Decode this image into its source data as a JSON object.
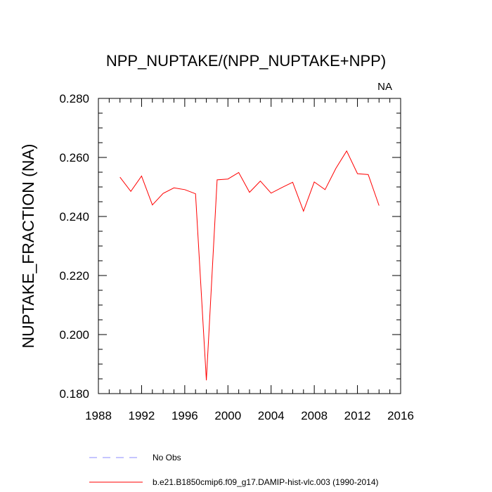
{
  "chart_data": {
    "type": "line",
    "title": "NPP_NUPTAKE/(NPP_NUPTAKE+NPP)",
    "region_label": "NA",
    "xlabel": "",
    "ylabel": "NUPTAKE_FRACTION  (NA)",
    "xlim": [
      1988,
      2016
    ],
    "ylim": [
      0.18,
      0.28
    ],
    "x_ticks": [
      1988,
      1992,
      1996,
      2000,
      2004,
      2008,
      2012,
      2016
    ],
    "x_tick_labels": [
      "1988",
      "1992",
      "1996",
      "2000",
      "2004",
      "2008",
      "2012",
      "2016"
    ],
    "y_ticks": [
      0.18,
      0.2,
      0.22,
      0.24,
      0.26,
      0.28
    ],
    "y_tick_labels": [
      "0.180",
      "0.200",
      "0.220",
      "0.240",
      "0.260",
      "0.280"
    ],
    "grid": false,
    "legend_position": "bottom",
    "series": [
      {
        "name": "b.e21.B1850cmip6.f09_g17.DAMIP-hist-vlc.003 (1990-2014)",
        "color": "#ff0000",
        "x": [
          1990,
          1991,
          1992,
          1993,
          1994,
          1995,
          1996,
          1997,
          1998,
          1999,
          2000,
          2001,
          2002,
          2003,
          2004,
          2005,
          2006,
          2007,
          2008,
          2009,
          2010,
          2011,
          2012,
          2013,
          2014
        ],
        "y": [
          0.2533,
          0.2485,
          0.2537,
          0.2439,
          0.2478,
          0.2497,
          0.2491,
          0.2477,
          0.1845,
          0.2524,
          0.2527,
          0.2549,
          0.2482,
          0.252,
          0.2479,
          0.2498,
          0.2516,
          0.2418,
          0.2517,
          0.2491,
          0.2563,
          0.2622,
          0.2545,
          0.2542,
          0.2437
        ]
      }
    ],
    "legend": [
      {
        "label": "No Obs",
        "color": "#8c8cff",
        "dash": "dashed"
      },
      {
        "label": "b.e21.B1850cmip6.f09_g17.DAMIP-hist-vlc.003 (1990-2014)",
        "color": "#ff0000",
        "dash": "solid"
      }
    ]
  }
}
